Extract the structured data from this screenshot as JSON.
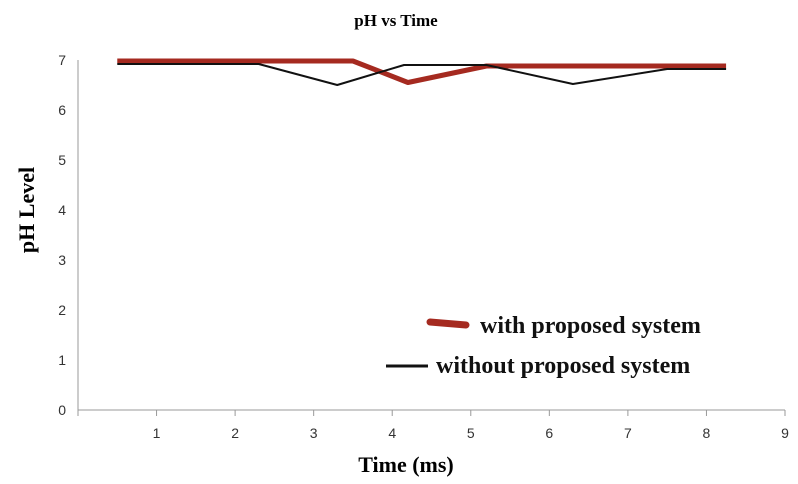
{
  "chart_data": {
    "type": "line",
    "title": "pH vs Time",
    "xlabel": "Time (ms)",
    "ylabel": "pH Level",
    "xlim": [
      0,
      9
    ],
    "ylim": [
      0,
      7
    ],
    "xticks": [
      0,
      1,
      2,
      3,
      4,
      5,
      6,
      7,
      8,
      9
    ],
    "yticks": [
      0,
      1,
      2,
      3,
      4,
      5,
      6,
      7
    ],
    "grid": false,
    "legend_position": "bottom-right",
    "series": [
      {
        "name": "with proposed system",
        "color": "#a52a20",
        "x": [
          0.5,
          3.5,
          4.2,
          5.2,
          8.25
        ],
        "y": [
          6.98,
          6.98,
          6.55,
          6.88,
          6.88
        ]
      },
      {
        "name": "without proposed system",
        "color": "#111111",
        "x": [
          0.5,
          2.3,
          3.3,
          4.15,
          5.2,
          6.3,
          7.5,
          8.25
        ],
        "y": [
          6.92,
          6.92,
          6.5,
          6.9,
          6.9,
          6.52,
          6.82,
          6.82
        ]
      }
    ]
  }
}
